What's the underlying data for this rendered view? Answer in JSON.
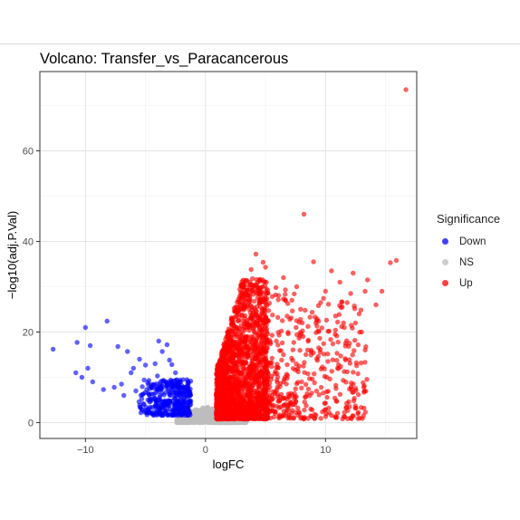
{
  "chart_data": {
    "type": "scatter",
    "title": "Volcano: Transfer_vs_Paracancerous",
    "xlabel": "logFC",
    "ylabel": "−log10(adj.P.Val)",
    "xlim": [
      -13.8,
      17.6
    ],
    "ylim": [
      -3.5,
      77.5
    ],
    "xticks": [
      -10,
      0,
      10
    ],
    "xtick_labels": [
      "−10",
      "0",
      "10"
    ],
    "yticks": [
      0,
      20,
      40,
      60
    ],
    "ytick_labels": [
      "0",
      "20",
      "40",
      "60"
    ],
    "grid": true,
    "legend": {
      "title": "Significance",
      "position": "right",
      "items": [
        {
          "label": "Down",
          "color": "#0000ff"
        },
        {
          "label": "NS",
          "color": "#bebebe"
        },
        {
          "label": "Up",
          "color": "#ff0000"
        }
      ]
    },
    "series": [
      {
        "name": "Down",
        "color": "#0000ff",
        "points": [
          [
            -12.7,
            16.2
          ],
          [
            -10.7,
            17.7
          ],
          [
            -9.6,
            17.0
          ],
          [
            -10.0,
            21.0
          ],
          [
            -8.2,
            22.4
          ],
          [
            -10.8,
            11.0
          ],
          [
            -10.3,
            10.0
          ],
          [
            -9.4,
            9.0
          ],
          [
            -9.8,
            12.0
          ],
          [
            -8.5,
            7.3
          ],
          [
            -7.3,
            16.8
          ],
          [
            -6.5,
            15.7
          ],
          [
            -6.0,
            12.0
          ],
          [
            -7.0,
            8.5
          ],
          [
            -6.2,
            11.0
          ],
          [
            -5.5,
            14.0
          ],
          [
            -5.0,
            12.7
          ],
          [
            -4.2,
            13.0
          ],
          [
            -3.6,
            15.7
          ],
          [
            -3.9,
            18.0
          ],
          [
            -3.2,
            17.2
          ],
          [
            -4.0,
            10.3
          ],
          [
            -2.8,
            12.8
          ],
          [
            -2.5,
            11.0
          ],
          [
            -5.8,
            7.0
          ],
          [
            -4.8,
            6.5
          ],
          [
            -6.8,
            6.0
          ],
          [
            -7.6,
            7.8
          ],
          [
            -5.2,
            4.2
          ],
          [
            -4.6,
            3.4
          ],
          [
            -3.3,
            8.8
          ],
          [
            -3.0,
            13.8
          ]
        ],
        "region": {
          "x": [
            -5.6,
            -1.2
          ],
          "y": [
            1.6,
            9.5
          ],
          "n": 360
        }
      },
      {
        "name": "NS",
        "color": "#bebebe",
        "region": {
          "x": [
            -2.4,
            3.4
          ],
          "y": [
            0,
            3.5
          ],
          "n": 900
        }
      },
      {
        "name": "Up",
        "color": "#ff0000",
        "points": [
          [
            16.7,
            73.5
          ],
          [
            8.2,
            46.0
          ],
          [
            15.9,
            35.8
          ],
          [
            15.4,
            35.3
          ],
          [
            12.3,
            33.0
          ],
          [
            12.1,
            28.5
          ],
          [
            13.3,
            29.0
          ],
          [
            12.8,
            24.0
          ],
          [
            11.2,
            31.0
          ],
          [
            14.7,
            29.0
          ],
          [
            10.5,
            33.5
          ],
          [
            9.0,
            35.5
          ],
          [
            13.0,
            20.0
          ],
          [
            11.5,
            22.0
          ],
          [
            14.2,
            26.0
          ],
          [
            9.6,
            26.5
          ],
          [
            10.8,
            19.5
          ],
          [
            8.8,
            16.0
          ],
          [
            12.0,
            17.5
          ],
          [
            7.6,
            30.0
          ],
          [
            4.2,
            37.2
          ],
          [
            4.8,
            35.4
          ],
          [
            5.0,
            34.3
          ],
          [
            3.8,
            33.8
          ],
          [
            6.5,
            32.0
          ],
          [
            7.2,
            27.0
          ],
          [
            8.3,
            24.8
          ],
          [
            9.7,
            20.9
          ],
          [
            10.2,
            13.5
          ],
          [
            11.0,
            12.0
          ],
          [
            6.5,
            9.0
          ],
          [
            7.8,
            12.5
          ],
          [
            5.9,
            18.0
          ],
          [
            8.9,
            9.6
          ],
          [
            9.2,
            22.0
          ],
          [
            10.0,
            29.0
          ],
          [
            11.8,
            26.5
          ],
          [
            12.5,
            22.0
          ],
          [
            13.5,
            31.5
          ],
          [
            6.8,
            23.5
          ]
        ],
        "region": {
          "x": [
            0.9,
            5.2
          ],
          "y": [
            0.8,
            31.0
          ],
          "n": 1900
        }
      }
    ]
  }
}
